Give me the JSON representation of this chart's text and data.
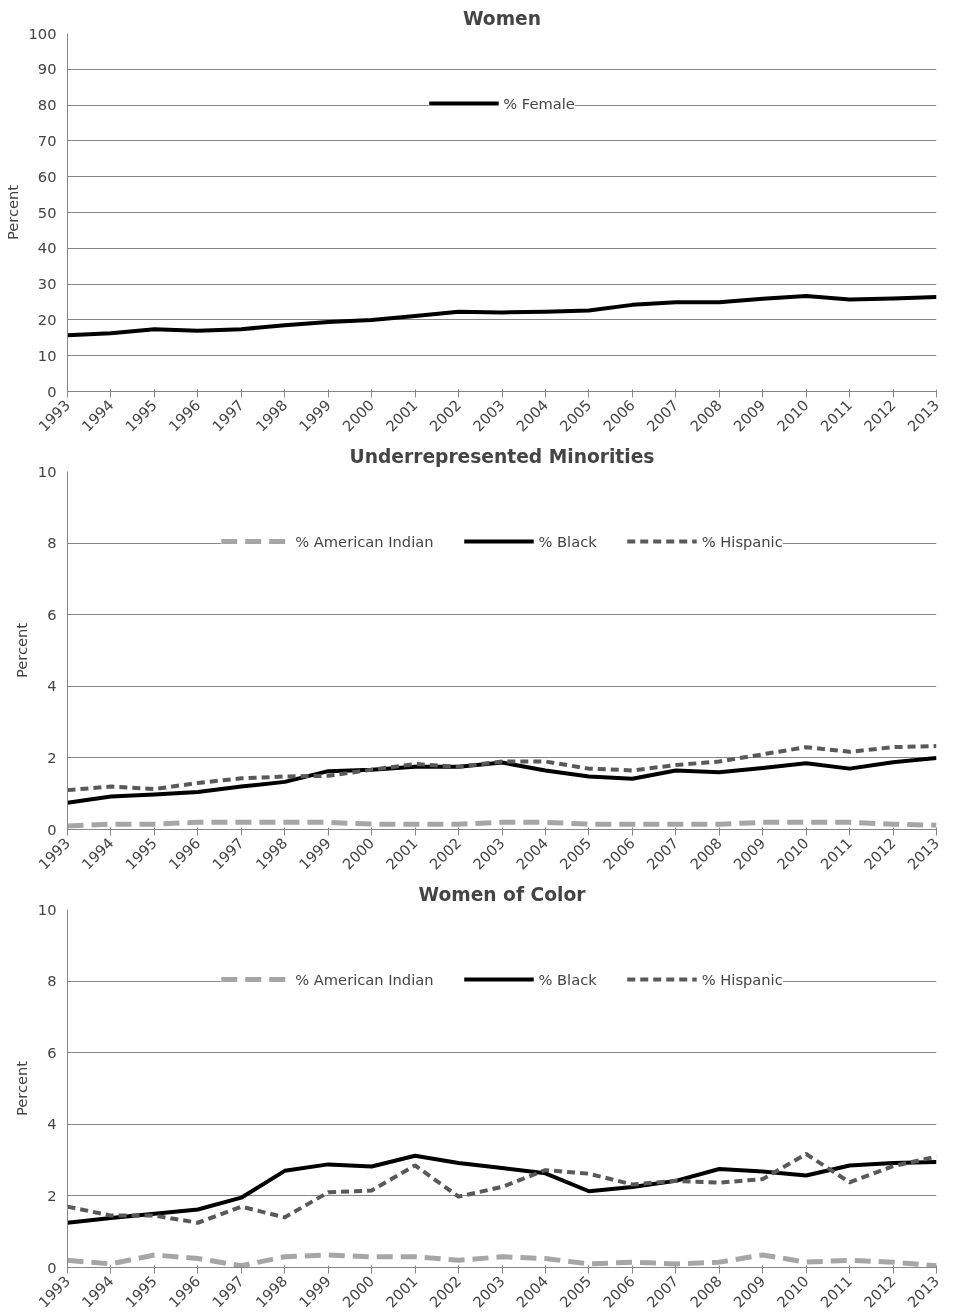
{
  "chart_data": [
    {
      "type": "line",
      "title": "Women",
      "ylabel": "Percent",
      "categories": [
        "1993",
        "1994",
        "1995",
        "1996",
        "1997",
        "1998",
        "1999",
        "2000",
        "2001",
        "2002",
        "2003",
        "2004",
        "2005",
        "2006",
        "2007",
        "2008",
        "2009",
        "2010",
        "2011",
        "2012",
        "2013"
      ],
      "ylim": [
        0,
        100
      ],
      "yticks": [
        0,
        10,
        20,
        30,
        40,
        50,
        60,
        70,
        80,
        90,
        100
      ],
      "grid": "y",
      "legend": "top",
      "series": [
        {
          "name": "% Female",
          "color": "#000000",
          "line_style": "solid",
          "values": [
            15.7,
            16.3,
            17.4,
            17.0,
            17.4,
            18.5,
            19.4,
            20.0,
            21.1,
            22.3,
            22.1,
            22.3,
            22.6,
            24.2,
            24.9,
            24.9,
            25.9,
            26.7,
            25.7,
            26.0,
            26.4
          ]
        }
      ]
    },
    {
      "type": "line",
      "title": "Underrepresented Minorities",
      "ylabel": "Percent",
      "categories": [
        "1993",
        "1994",
        "1995",
        "1996",
        "1997",
        "1998",
        "1999",
        "2000",
        "2001",
        "2002",
        "2003",
        "2004",
        "2005",
        "2006",
        "2007",
        "2008",
        "2009",
        "2010",
        "2011",
        "2012",
        "2013"
      ],
      "ylim": [
        0,
        10
      ],
      "yticks": [
        0,
        2,
        4,
        6,
        8,
        10
      ],
      "grid": "y",
      "legend": "top",
      "series": [
        {
          "name": "% American Indian",
          "color": "#a6a6a6",
          "line_style": "dashed",
          "values": [
            0.1,
            0.15,
            0.15,
            0.2,
            0.2,
            0.2,
            0.2,
            0.15,
            0.15,
            0.15,
            0.2,
            0.2,
            0.15,
            0.15,
            0.15,
            0.15,
            0.2,
            0.2,
            0.2,
            0.15,
            0.12
          ]
        },
        {
          "name": "% Black",
          "color": "#000000",
          "line_style": "solid",
          "values": [
            0.75,
            0.92,
            0.98,
            1.05,
            1.2,
            1.33,
            1.63,
            1.67,
            1.75,
            1.75,
            1.87,
            1.65,
            1.48,
            1.42,
            1.65,
            1.6,
            1.72,
            1.85,
            1.7,
            1.88,
            2.0
          ]
        },
        {
          "name": "% Hispanic",
          "color": "#595959",
          "line_style": "dotted",
          "values": [
            1.1,
            1.2,
            1.13,
            1.3,
            1.43,
            1.48,
            1.5,
            1.67,
            1.83,
            1.75,
            1.9,
            1.9,
            1.7,
            1.65,
            1.8,
            1.9,
            2.1,
            2.3,
            2.17,
            2.3,
            2.33
          ]
        }
      ]
    },
    {
      "type": "line",
      "title": "Women of Color",
      "ylabel": "Percent",
      "categories": [
        "1993",
        "1994",
        "1995",
        "1996",
        "1997",
        "1998",
        "1999",
        "2000",
        "2001",
        "2002",
        "2003",
        "2004",
        "2005",
        "2006",
        "2007",
        "2008",
        "2009",
        "2010",
        "2011",
        "2012",
        "2013"
      ],
      "ylim": [
        0,
        10
      ],
      "yticks": [
        0,
        2,
        4,
        6,
        8,
        10
      ],
      "grid": "y",
      "legend": "top",
      "series": [
        {
          "name": "% American Indian",
          "color": "#a6a6a6",
          "line_style": "dashed",
          "values": [
            0.2,
            0.1,
            0.35,
            0.25,
            0.05,
            0.3,
            0.35,
            0.3,
            0.3,
            0.2,
            0.3,
            0.25,
            0.1,
            0.15,
            0.1,
            0.15,
            0.35,
            0.15,
            0.2,
            0.15,
            0.05
          ]
        },
        {
          "name": "% Black",
          "color": "#000000",
          "line_style": "solid",
          "values": [
            1.25,
            1.38,
            1.5,
            1.62,
            1.95,
            2.7,
            2.88,
            2.82,
            3.12,
            2.92,
            2.78,
            2.63,
            2.13,
            2.25,
            2.42,
            2.75,
            2.68,
            2.57,
            2.85,
            2.92,
            2.95
          ]
        },
        {
          "name": "% Hispanic",
          "color": "#595959",
          "line_style": "dotted",
          "values": [
            1.7,
            1.45,
            1.45,
            1.25,
            1.7,
            1.4,
            2.1,
            2.15,
            2.85,
            1.98,
            2.25,
            2.72,
            2.62,
            2.32,
            2.42,
            2.37,
            2.47,
            3.17,
            2.38,
            2.83,
            3.1
          ]
        }
      ]
    }
  ]
}
